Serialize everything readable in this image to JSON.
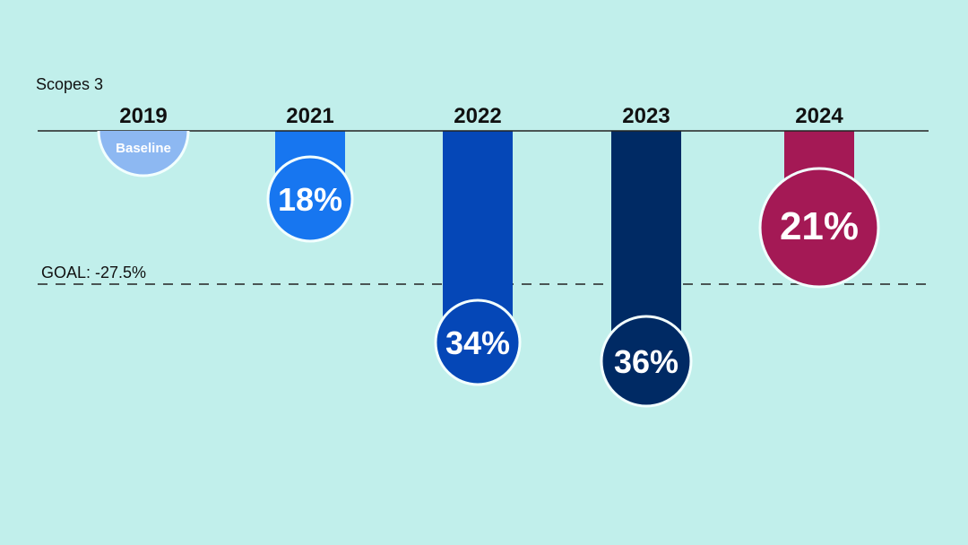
{
  "chart_data": {
    "type": "bar",
    "orientation": "downward",
    "scope_label": "Scopes 3",
    "categories": [
      "2019",
      "2021",
      "2022",
      "2023",
      "2024"
    ],
    "labels": [
      "Baseline",
      "18%",
      "34%",
      "36%",
      "21%"
    ],
    "values": [
      0,
      18,
      34,
      36,
      21
    ],
    "colors": [
      "#8db8f2",
      "#1776f0",
      "#0547b7",
      "#002a64",
      "#a41955"
    ],
    "goal": {
      "label": "GOAL: -27.5%",
      "value": 27.5
    }
  }
}
